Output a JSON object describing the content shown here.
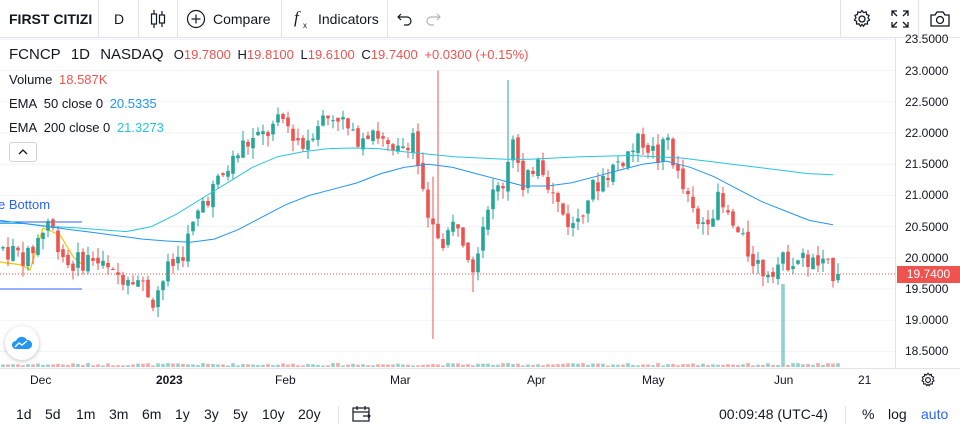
{
  "toolbar": {
    "symbol_search": "FIRST CITIZI",
    "interval": "D",
    "compare_label": "Compare",
    "indicators_label": "Indicators"
  },
  "legend": {
    "symbol": "FCNCP",
    "interval": "1D",
    "exchange": "NASDAQ",
    "open_key": "O",
    "open": "19.7800",
    "high_key": "H",
    "high": "19.8100",
    "low_key": "L",
    "low": "19.6100",
    "close_key": "C",
    "close": "19.7400",
    "change": "+0.0300 (+0.15%)",
    "volume_label": "Volume",
    "volume_value": "18.587K",
    "ema50_label": "EMA",
    "ema50_params": "50 close 0",
    "ema50_value": "20.5335",
    "ema200_label": "EMA",
    "ema200_params": "200 close 0",
    "ema200_value": "21.3273"
  },
  "pattern_label": "e Bottom",
  "price_axis": {
    "ticks": [
      "23.5000",
      "23.0000",
      "22.5000",
      "22.0000",
      "21.5000",
      "21.0000",
      "20.5000",
      "20.0000",
      "19.5000",
      "19.0000",
      "18.5000"
    ],
    "last_price": "19.7400"
  },
  "time_axis": {
    "labels": [
      "Dec",
      "2023",
      "Feb",
      "Mar",
      "Apr",
      "May",
      "Jun",
      "21"
    ]
  },
  "bottom": {
    "ranges": [
      "1d",
      "5d",
      "1m",
      "3m",
      "6m",
      "1y",
      "3y",
      "5y",
      "10y",
      "20y"
    ],
    "clock": "00:09:48 (UTC-4)",
    "percent": "%",
    "log": "log",
    "auto": "auto"
  },
  "colors": {
    "up": "#26a69a",
    "down": "#ef5350",
    "ema50": "#2196f3",
    "ema200": "#26c6da",
    "text": "#131722",
    "accent": "#2962ff"
  },
  "chart_data": {
    "type": "candlestick",
    "ylim": [
      18.3,
      23.55
    ],
    "interval": "1D",
    "last_close": 19.74,
    "series": [
      {
        "name": "EMA 50 close 0",
        "values": [
          20.6,
          20.55,
          20.5,
          20.45,
          20.4,
          20.35,
          20.3,
          20.27,
          20.25,
          20.3,
          20.45,
          20.65,
          20.85,
          21.0,
          21.1,
          21.2,
          21.35,
          21.45,
          21.5,
          21.45,
          21.35,
          21.25,
          21.15,
          21.15,
          21.2,
          21.3,
          21.4,
          21.5,
          21.55,
          21.45,
          21.3,
          21.1,
          20.9,
          20.75,
          20.6,
          20.53
        ]
      },
      {
        "name": "EMA 200 close 0",
        "values": [
          20.55,
          20.55,
          20.5,
          20.48,
          20.45,
          20.42,
          20.5,
          20.7,
          20.95,
          21.2,
          21.45,
          21.62,
          21.7,
          21.75,
          21.76,
          21.75,
          21.7,
          21.66,
          21.62,
          21.6,
          21.58,
          21.58,
          21.6,
          21.62,
          21.63,
          21.64,
          21.62,
          21.6,
          21.55,
          21.5,
          21.45,
          21.4,
          21.35,
          21.33
        ]
      }
    ]
  }
}
